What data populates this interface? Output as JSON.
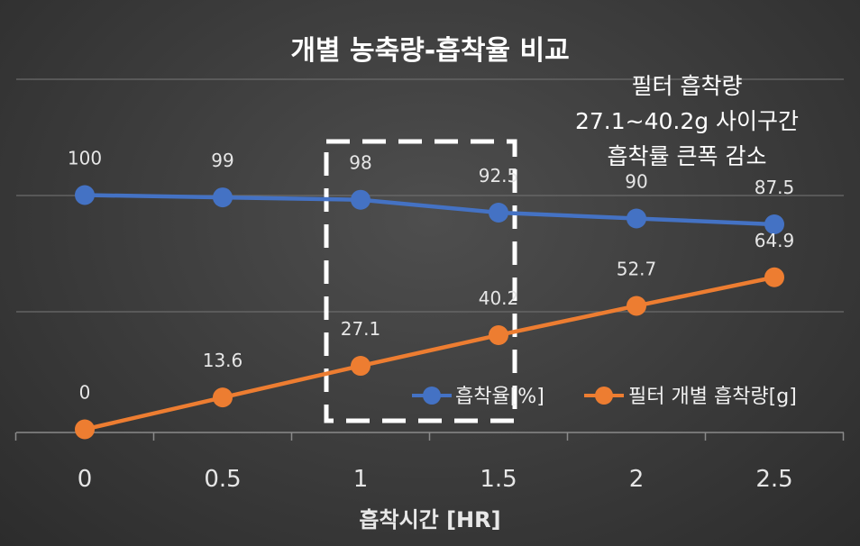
{
  "chart_data": {
    "type": "line",
    "title": "개별 농축량-흡착율 비교",
    "xlabel": "흡착시간 [HR]",
    "ylabel": "",
    "x": [
      0,
      0.5,
      1,
      1.5,
      2,
      2.5
    ],
    "x_tick_labels": [
      "0",
      "0.5",
      "1",
      "1.5",
      "2",
      "2.5"
    ],
    "ylim": [
      -5,
      148
    ],
    "grid": true,
    "legend_position": "bottom-right",
    "series": [
      {
        "name": "흡착율[%]",
        "values": [
          100,
          99,
          98,
          92.5,
          90,
          87.5
        ],
        "labels": [
          "100",
          "99",
          "98",
          "92.5",
          "90",
          "87.5"
        ],
        "color": "#4472C4"
      },
      {
        "name": "필터 개별 흡착량[g]",
        "values": [
          0,
          13.6,
          27.1,
          40.2,
          52.7,
          64.9
        ],
        "labels": [
          "0",
          "13.6",
          "27.1",
          "40.2",
          "52.7",
          "64.9"
        ],
        "color": "#ED7D31"
      }
    ],
    "annotation": {
      "lines": [
        "필터 흡착량",
        "27.1~40.2g 사이구간",
        "흡착률 큰폭 감소"
      ],
      "highlight_x_range": [
        1,
        1.5
      ]
    }
  }
}
